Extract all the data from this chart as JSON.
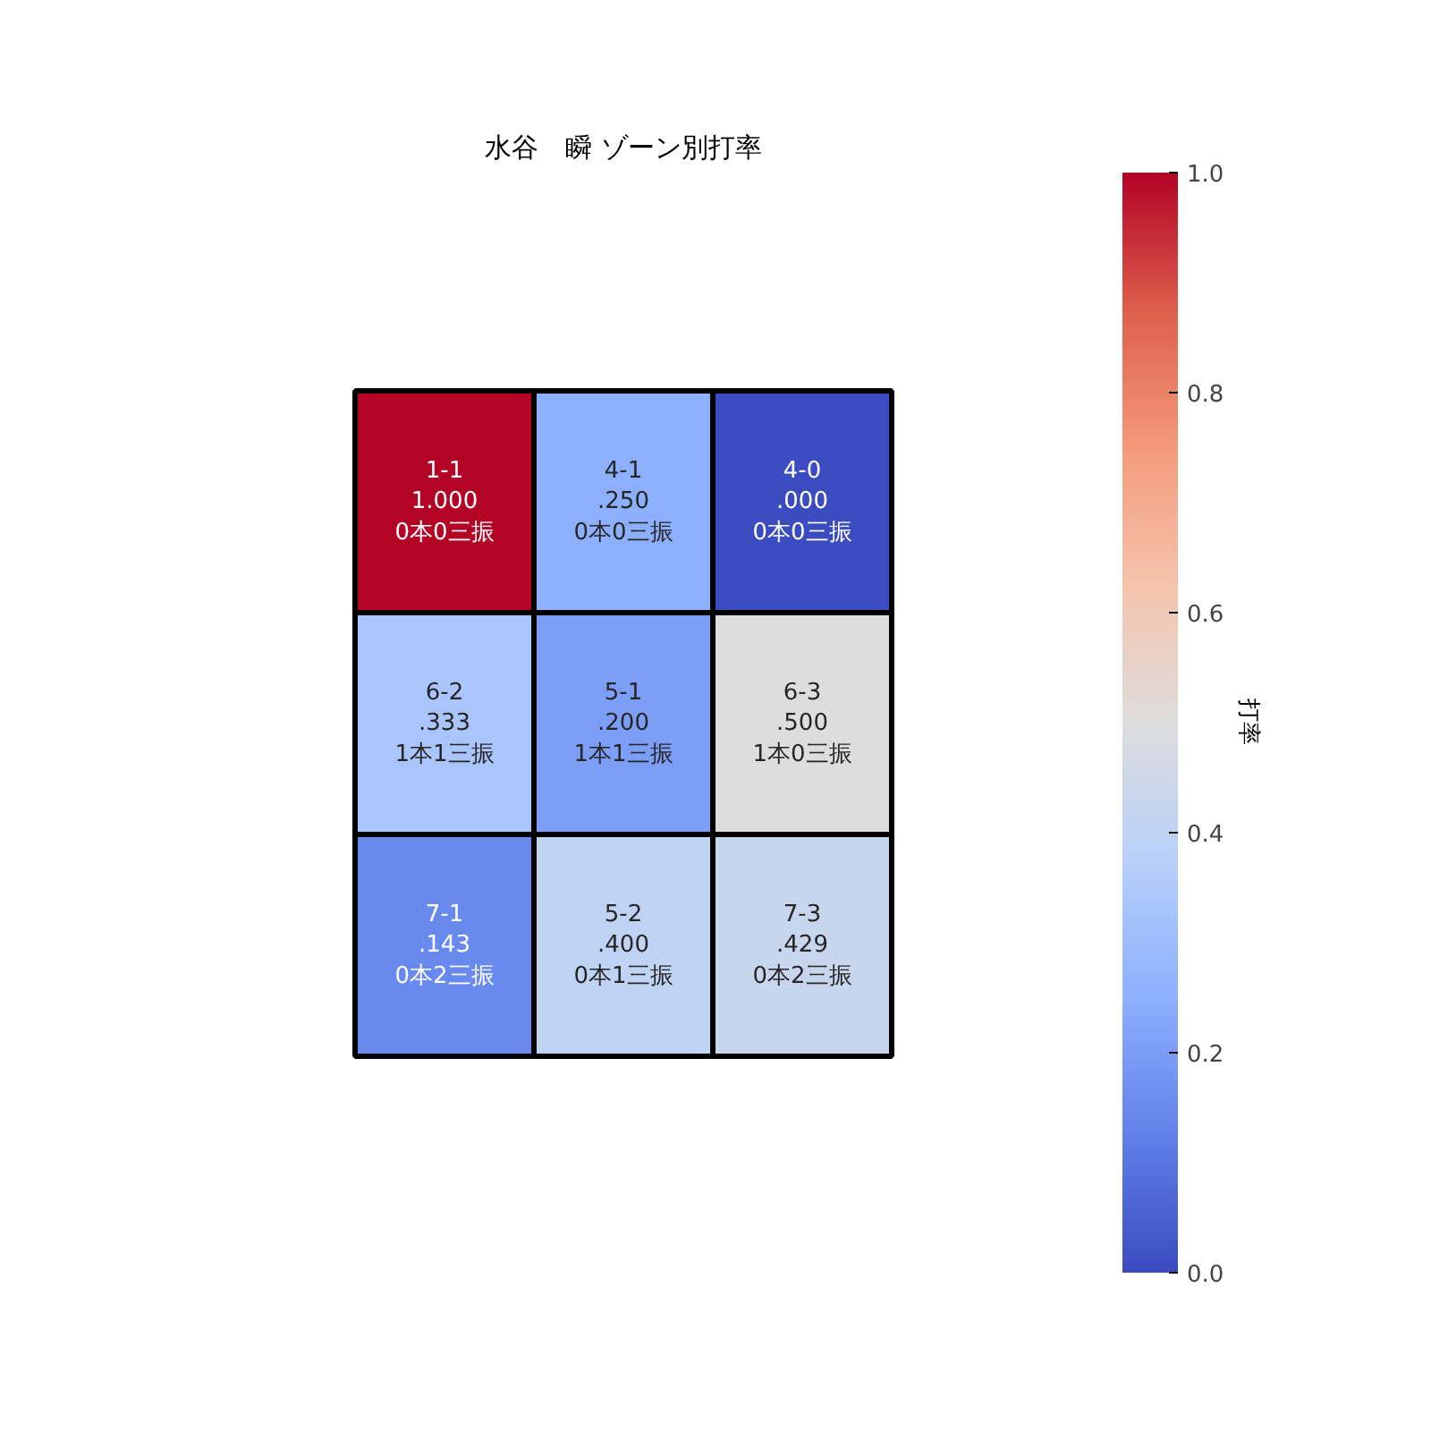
{
  "chart_data": {
    "type": "heatmap",
    "title": "水谷　瞬 ゾーン別打率",
    "clabel": "打率",
    "categories": [
      null,
      null,
      null
    ],
    "y_categories": [
      null,
      null,
      null
    ],
    "cells": [
      [
        1.0,
        0.25,
        0.0
      ],
      [
        0.333,
        0.2,
        0.5
      ],
      [
        0.143,
        0.4,
        0.429
      ]
    ],
    "cell_labels": [
      [
        "1-1\n1.000\n0本0三振",
        "4-1\n.250\n0本0三振",
        "4-0\n.000\n0本0三振"
      ],
      [
        "6-2\n.333\n1本1三振",
        "5-1\n.200\n1本1三振",
        "6-3\n.500\n1本0三振"
      ],
      [
        "7-1\n.143\n0本2三振",
        "5-2\n.400\n0本1三振",
        "7-3\n.429\n0本2三振"
      ]
    ],
    "clim": [
      0,
      1
    ],
    "cticks": [
      {
        "value": 0,
        "label": "0.0"
      },
      {
        "value": 0.2,
        "label": "0.2"
      },
      {
        "value": 0.4,
        "label": "0.4"
      },
      {
        "value": 0.6,
        "label": "0.6"
      },
      {
        "value": 0.8,
        "label": "0.8"
      },
      {
        "value": 1,
        "label": "1.0"
      }
    ],
    "tick_labels": false,
    "grid": false
  }
}
